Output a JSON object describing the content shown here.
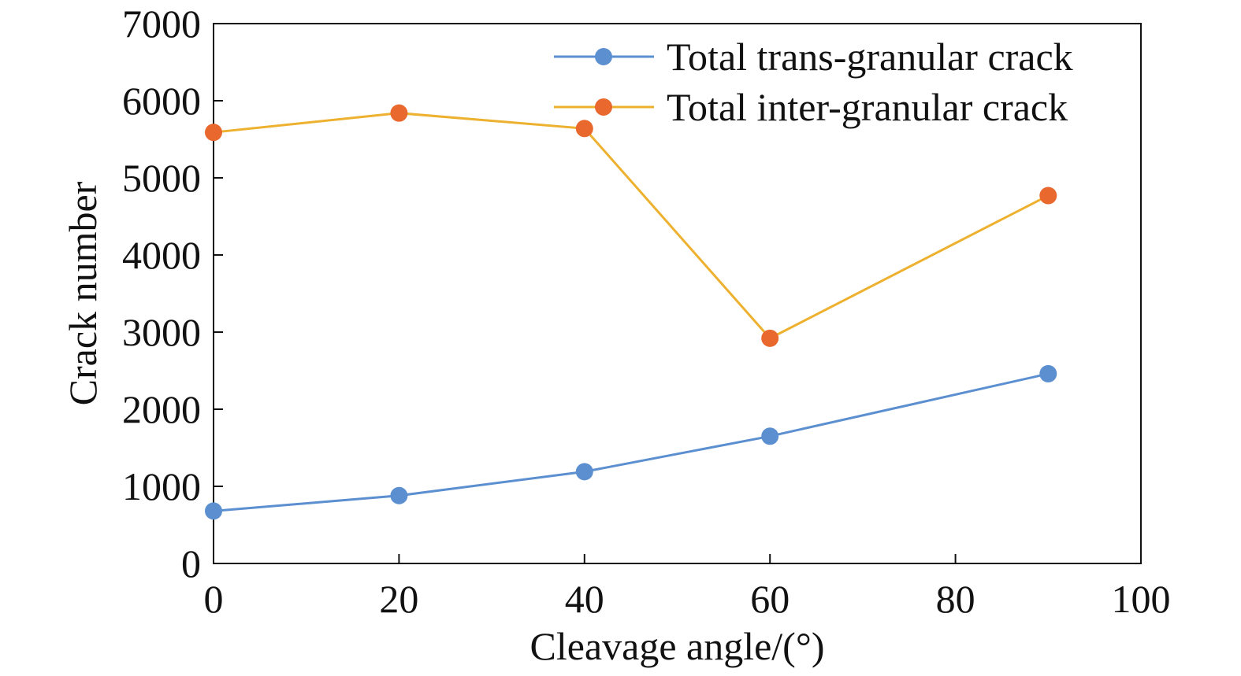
{
  "chart_data": {
    "type": "line",
    "title": "",
    "xlabel": "Cleavage angle/(°)",
    "ylabel": "Crack number",
    "xlim": [
      0,
      100
    ],
    "ylim": [
      0,
      7000
    ],
    "x_ticks": [
      "0",
      "20",
      "40",
      "60",
      "80",
      "100"
    ],
    "y_ticks": [
      "0",
      "1000",
      "2000",
      "3000",
      "4000",
      "5000",
      "6000",
      "7000"
    ],
    "grid": false,
    "legend_position": "top-right",
    "x": [
      0,
      20,
      40,
      60,
      90
    ],
    "series": [
      {
        "name": "Total trans-granular crack",
        "values": [
          680,
          880,
          1190,
          1650,
          2460
        ],
        "line_color": "#5b8fd0",
        "marker_color": "#5b8fd0"
      },
      {
        "name": "Total inter-granular crack",
        "values": [
          5590,
          5840,
          5640,
          2920,
          4770
        ],
        "line_color": "#edb12f",
        "marker_color": "#e8682e"
      }
    ]
  }
}
